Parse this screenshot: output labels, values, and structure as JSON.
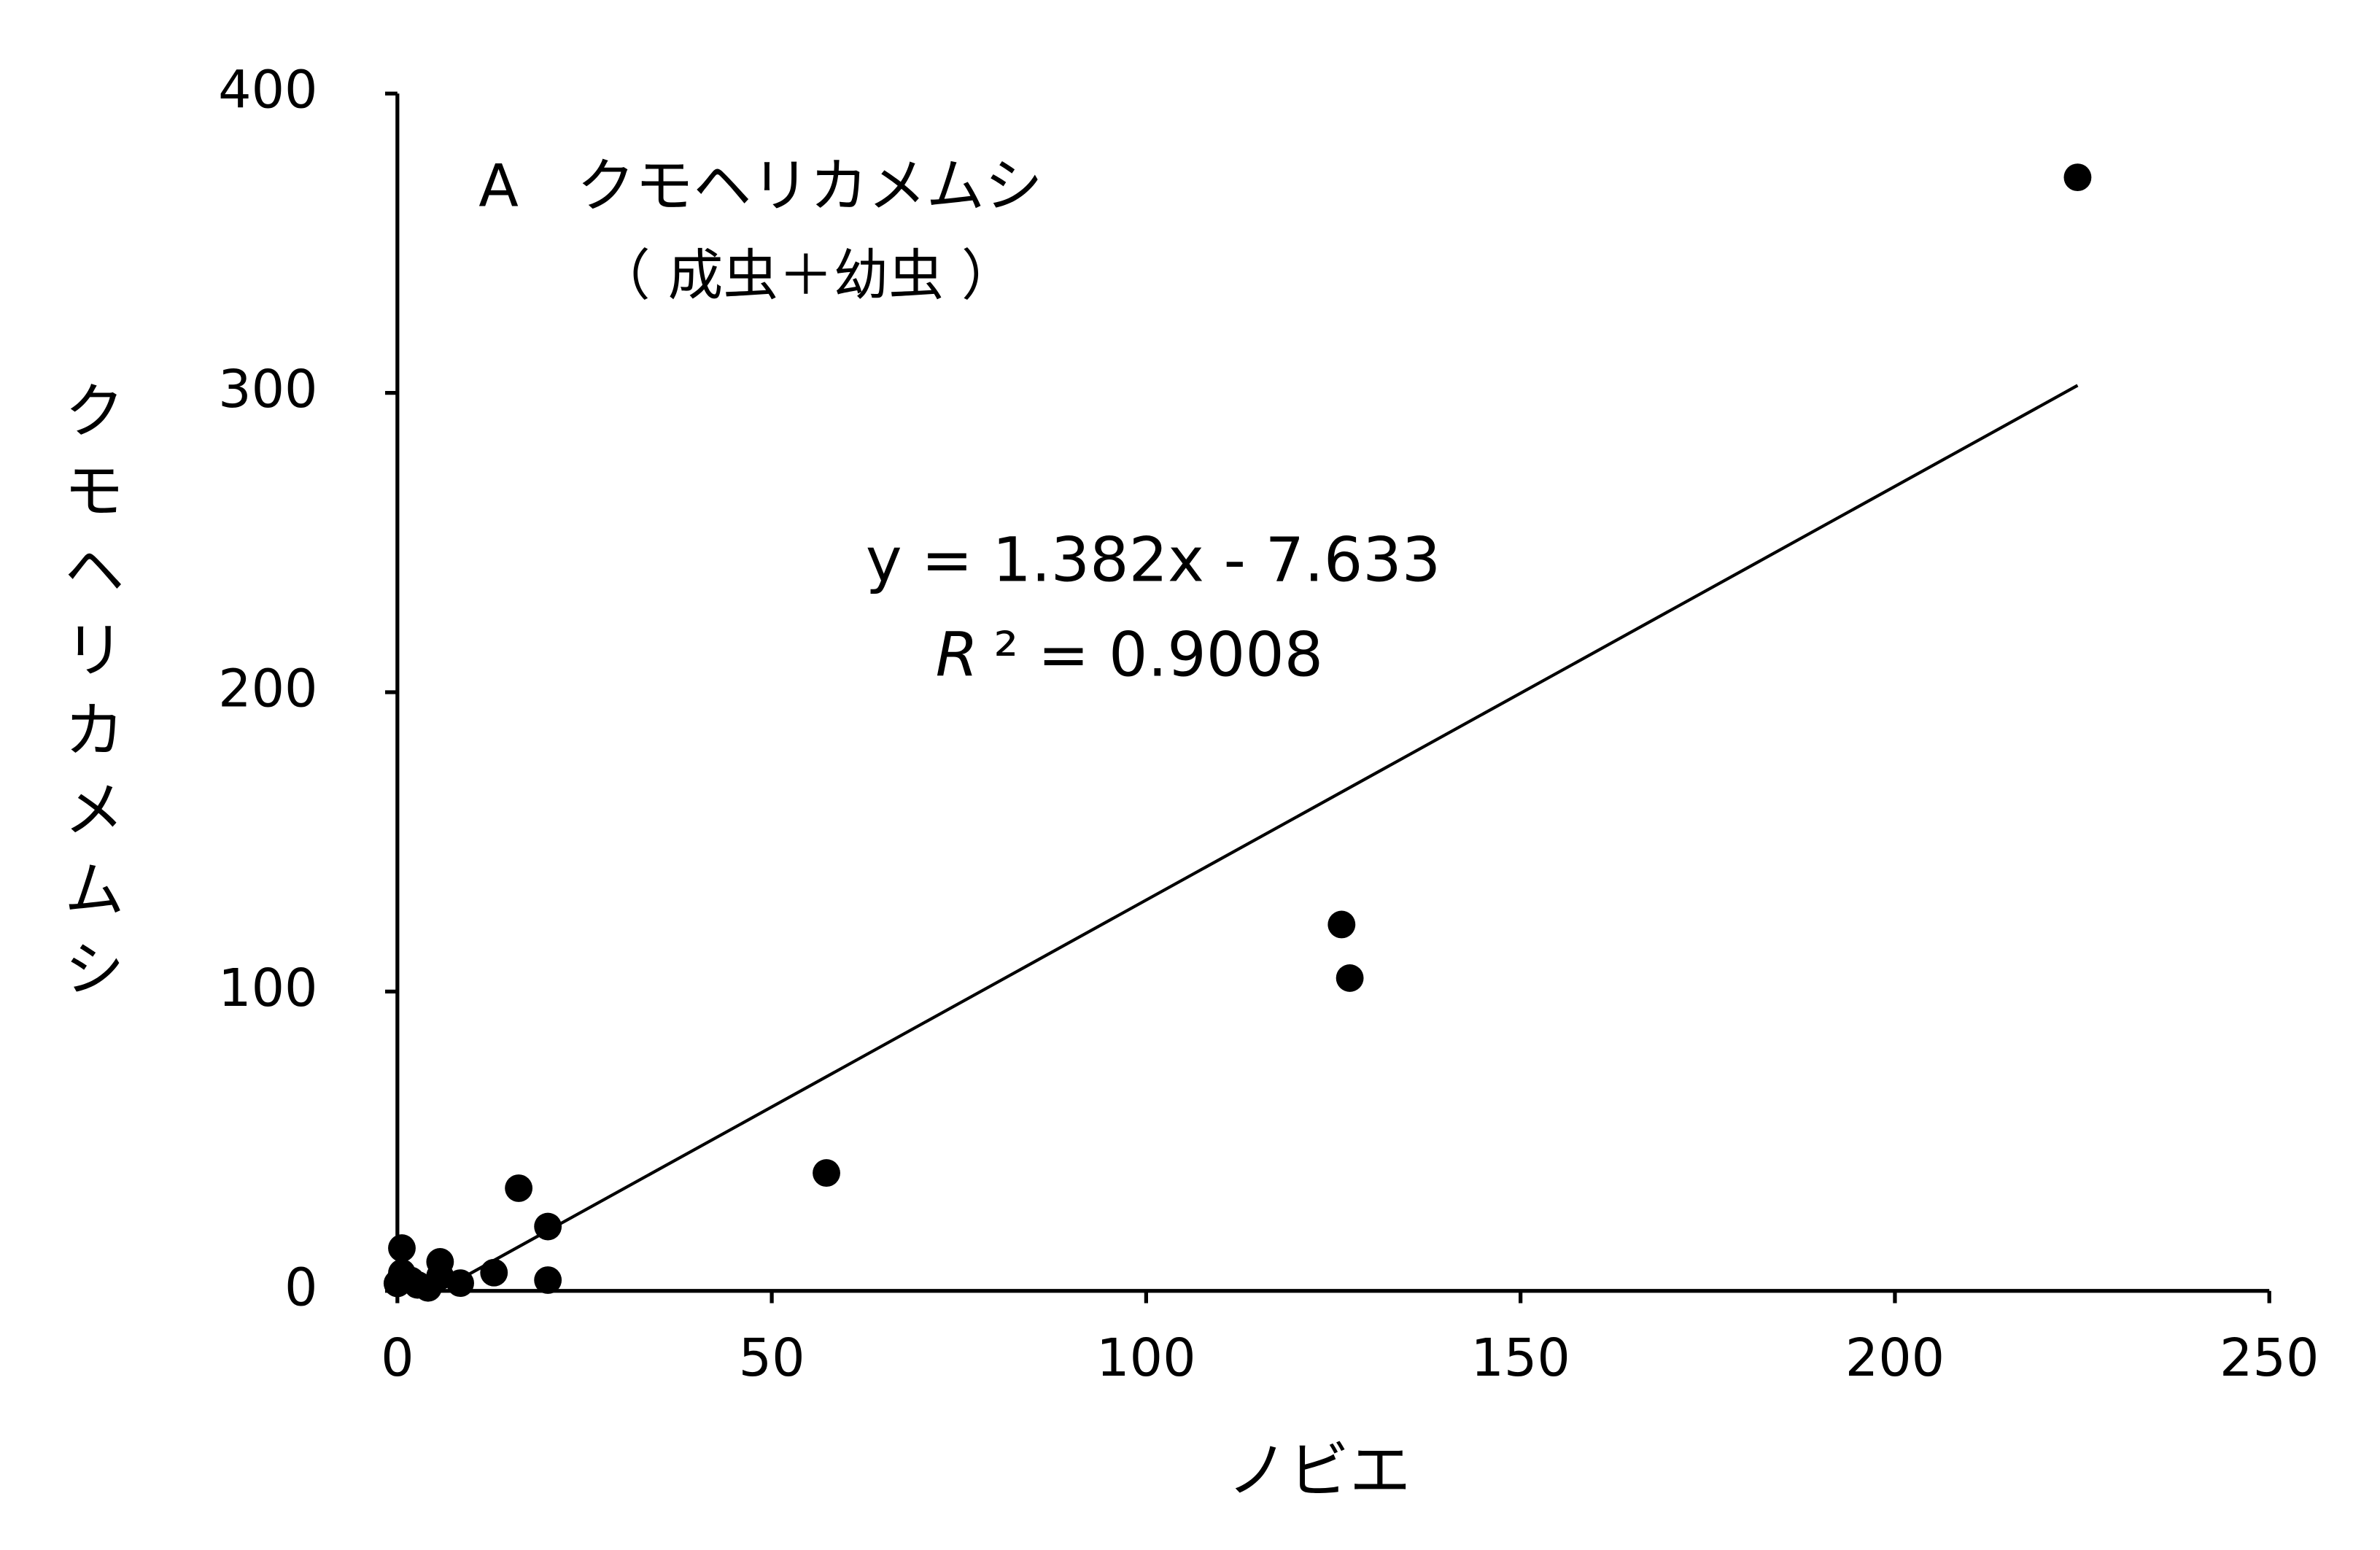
{
  "chart_data": {
    "type": "scatter",
    "title": "A　クモヘリカメムシ",
    "subtitle": "（ 成虫＋幼虫 ）",
    "x_label": "ノビエ",
    "y_label": "クモヘリカメムシ",
    "x": [
      224.4,
      126.1,
      127.2,
      57.3,
      16.2,
      20.1,
      20.1,
      12.9,
      8.4,
      5.7,
      5.7,
      4.1,
      0.6,
      0.6,
      0,
      1.8,
      2.7
    ],
    "values": [
      372,
      122.4,
      104.5,
      39.4,
      34.3,
      21.5,
      3.6,
      6.1,
      2.6,
      9.7,
      5,
      1,
      14.3,
      6,
      2.5,
      3.5,
      2
    ],
    "color": "#000000",
    "trendline": {
      "slope": 1.382,
      "intercept": -7.633,
      "label": "y = 1.382x - 7.633"
    },
    "r2_symbol": "R",
    "r2_text": "² = 0.9008",
    "xlim": [
      0,
      250
    ],
    "xticks": [
      0,
      50,
      100,
      150,
      200,
      250
    ],
    "ylim": [
      0,
      400
    ],
    "yticks": [
      0,
      100,
      200,
      300,
      400
    ]
  }
}
